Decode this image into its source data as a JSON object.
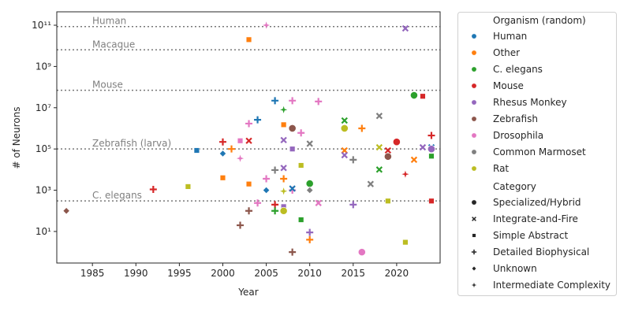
{
  "chart_data": {
    "type": "scatter",
    "xlabel": "Year",
    "ylabel": "# of Neurons",
    "xlim": [
      1980.9,
      2025.0
    ],
    "ylim_log10": [
      -0.53,
      11.65
    ],
    "yscale": "log",
    "x_ticks": [
      1985,
      1990,
      1995,
      2000,
      2005,
      2010,
      2015,
      2020
    ],
    "x_tick_labels": [
      "1985",
      "1990",
      "1995",
      "2000",
      "2005",
      "2010",
      "2015",
      "2020"
    ],
    "y_ticks": [
      10,
      1000,
      100000,
      10000000,
      1000000000,
      100000000000
    ],
    "y_tick_labels": [
      "10¹",
      "10³",
      "10⁵",
      "10⁷",
      "10⁹",
      "10¹¹"
    ],
    "grid": false,
    "reference_lines": [
      {
        "label": "Human",
        "value": 86000000000
      },
      {
        "label": "Macaque",
        "value": 6400000000
      },
      {
        "label": "Mouse",
        "value": 70000000
      },
      {
        "label": "Zebrafish (larva)",
        "value": 100000
      },
      {
        "label": "C. elegans",
        "value": 302
      }
    ],
    "legend_position": "outside-right",
    "legend": {
      "organism_title": "Organism (random)",
      "organisms": [
        {
          "name": "Human",
          "color": "#1f77b4"
        },
        {
          "name": "Other",
          "color": "#ff7f0e"
        },
        {
          "name": "C. elegans",
          "color": "#2ca02c"
        },
        {
          "name": "Mouse",
          "color": "#d62728"
        },
        {
          "name": "Rhesus Monkey",
          "color": "#9467bd"
        },
        {
          "name": "Zebrafish",
          "color": "#8c564b"
        },
        {
          "name": "Drosophila",
          "color": "#e377c2"
        },
        {
          "name": "Common Marmoset",
          "color": "#7f7f7f"
        },
        {
          "name": "Rat",
          "color": "#bcbd22"
        }
      ],
      "category_title": "Category",
      "categories": [
        {
          "name": "Specialized/Hybrid",
          "marker": "circle"
        },
        {
          "name": "Integrate-and-Fire",
          "marker": "x"
        },
        {
          "name": "Simple Abstract",
          "marker": "square"
        },
        {
          "name": "Detailed Biophysical",
          "marker": "plus"
        },
        {
          "name": "Unknown",
          "marker": "diamond"
        },
        {
          "name": "Intermediate Complexity",
          "marker": "star"
        }
      ]
    },
    "point_fields": [
      "year",
      "neurons",
      "organism_index",
      "category_index"
    ],
    "points": [
      [
        1982,
        100,
        5,
        4
      ],
      [
        1992,
        1100,
        3,
        3
      ],
      [
        1996,
        1500,
        8,
        2
      ],
      [
        1997,
        85000,
        0,
        2
      ],
      [
        2000,
        4000,
        1,
        2
      ],
      [
        2000,
        60000,
        0,
        4
      ],
      [
        2000,
        220000,
        3,
        3
      ],
      [
        2001,
        100000,
        1,
        3
      ],
      [
        2002,
        250000,
        6,
        2
      ],
      [
        2002,
        35000,
        6,
        5
      ],
      [
        2003,
        1700000,
        6,
        3
      ],
      [
        2003,
        250000,
        3,
        1
      ],
      [
        2003,
        20000000000,
        1,
        2
      ],
      [
        2003,
        2000,
        1,
        2
      ],
      [
        2003,
        100,
        5,
        3
      ],
      [
        2002,
        20,
        5,
        3
      ],
      [
        2005,
        100000000000,
        6,
        5
      ],
      [
        2006,
        22000000,
        0,
        3
      ],
      [
        2008,
        22000000,
        6,
        3
      ],
      [
        2011,
        20000000,
        6,
        3
      ],
      [
        2007,
        8000000,
        2,
        5
      ],
      [
        2004,
        2600000,
        0,
        3
      ],
      [
        2007,
        1500000,
        1,
        2
      ],
      [
        2008,
        1000000,
        5,
        0
      ],
      [
        2009,
        600000,
        6,
        3
      ],
      [
        2007,
        270000,
        4,
        1
      ],
      [
        2008,
        100000,
        4,
        2
      ],
      [
        2010,
        180000,
        7,
        1
      ],
      [
        2006,
        9500,
        7,
        3
      ],
      [
        2007,
        12000,
        4,
        1
      ],
      [
        2009,
        16000,
        8,
        2
      ],
      [
        2005,
        3600,
        6,
        3
      ],
      [
        2007,
        3600,
        1,
        3
      ],
      [
        2005,
        1000,
        0,
        4
      ],
      [
        2008,
        1000,
        6,
        3
      ],
      [
        2008,
        1200,
        0,
        1
      ],
      [
        2007,
        900,
        8,
        5
      ],
      [
        2010,
        2100,
        2,
        0
      ],
      [
        2010,
        1000,
        7,
        4
      ],
      [
        2004,
        240,
        6,
        3
      ],
      [
        2006,
        200,
        3,
        3
      ],
      [
        2011,
        240,
        6,
        1
      ],
      [
        2007,
        160,
        4,
        2
      ],
      [
        2006,
        100,
        2,
        3
      ],
      [
        2007,
        100,
        8,
        0
      ],
      [
        2009,
        37,
        2,
        2
      ],
      [
        2010,
        9,
        4,
        3
      ],
      [
        2010,
        4,
        1,
        3
      ],
      [
        2008,
        1,
        5,
        3
      ],
      [
        2021,
        70000000000,
        4,
        1
      ],
      [
        2022,
        40000000,
        2,
        0
      ],
      [
        2023,
        36000000,
        3,
        2
      ],
      [
        2014,
        2400000,
        2,
        1
      ],
      [
        2018,
        4000000,
        7,
        1
      ],
      [
        2014,
        1000000,
        8,
        0
      ],
      [
        2016,
        1000000,
        1,
        3
      ],
      [
        2020,
        220000,
        3,
        0
      ],
      [
        2024,
        450000,
        3,
        3
      ],
      [
        2018,
        120000,
        8,
        1
      ],
      [
        2023,
        120000,
        4,
        1
      ],
      [
        2024,
        120000,
        0,
        1
      ],
      [
        2024,
        100000,
        4,
        0
      ],
      [
        2014,
        85000,
        1,
        1
      ],
      [
        2014,
        50000,
        4,
        1
      ],
      [
        2019,
        85000,
        3,
        1
      ],
      [
        2019,
        43000,
        5,
        0
      ],
      [
        2024,
        45000,
        2,
        2
      ],
      [
        2015,
        30000,
        7,
        3
      ],
      [
        2022,
        30000,
        1,
        1
      ],
      [
        2018,
        10000,
        2,
        1
      ],
      [
        2021,
        6000,
        3,
        5
      ],
      [
        2017,
        2000,
        7,
        1
      ],
      [
        2015,
        200,
        4,
        3
      ],
      [
        2019,
        300,
        8,
        2
      ],
      [
        2024,
        300,
        3,
        2
      ],
      [
        2021,
        3,
        8,
        2
      ],
      [
        2016,
        1,
        6,
        0
      ]
    ]
  }
}
